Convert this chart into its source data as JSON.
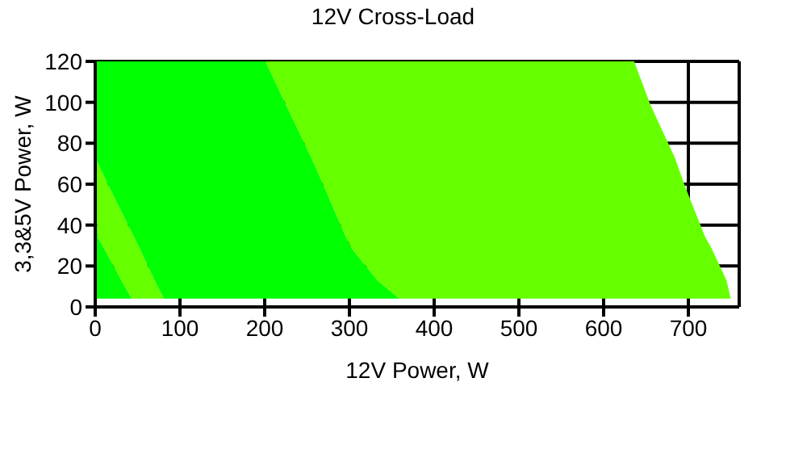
{
  "chart_data": {
    "type": "area",
    "title": "12V Cross-Load",
    "xlabel": "12V Power, W",
    "ylabel": "3,3&5V Power, W",
    "orientation": "horizontal",
    "stacked": true,
    "x": [
      4,
      13,
      29,
      34,
      59,
      73,
      99,
      120
    ],
    "series": [
      {
        "color": "#00ff00",
        "values": [
          43,
          31,
          10,
          3,
          0,
          0,
          0,
          0
        ]
      },
      {
        "color": "#66ff00",
        "values": [
          38,
          39,
          42,
          43,
          16,
          0,
          0,
          0
        ]
      },
      {
        "color": "#00ff00",
        "values": [
          278,
          263,
          250,
          250,
          254,
          255,
          225,
          201
        ]
      },
      {
        "color": "#66ff00",
        "values": [
          391,
          412,
          425,
          424,
          426,
          429,
          430,
          435
        ]
      }
    ],
    "xlim": [
      0,
      760
    ],
    "xticks": [
      0,
      100,
      200,
      300,
      400,
      500,
      600,
      700
    ],
    "ylim": [
      0,
      120
    ],
    "yticks": [
      0,
      20,
      40,
      60,
      80,
      100,
      120
    ],
    "grid": true
  }
}
